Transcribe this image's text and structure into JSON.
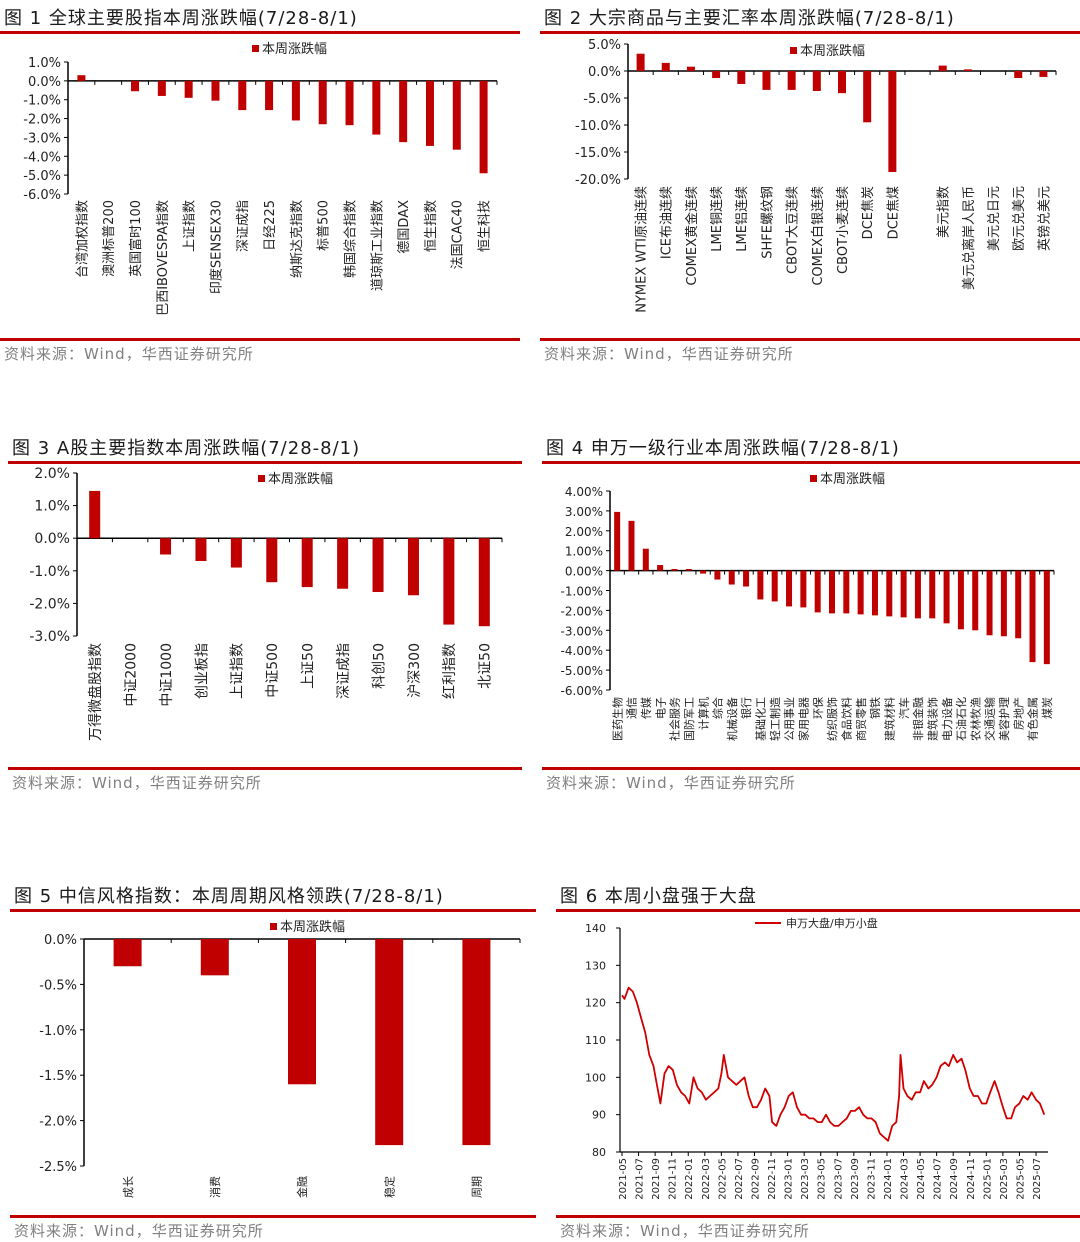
{
  "colors": {
    "bar": "#c00000",
    "rule": "#c00000",
    "line": "#d00000"
  },
  "charts": [
    {
      "title": "图 1  全球主要股指本周涨跌幅(7/28-8/1)",
      "source": "资料来源：Wind，华西证券研究所",
      "chart_data": {
        "type": "bar",
        "legend": "本周涨跌幅",
        "legend_position": "top",
        "ylim": [
          -6.0,
          1.0
        ],
        "yticks": [
          1.0,
          0.0,
          -1.0,
          -2.0,
          -3.0,
          -4.0,
          -5.0,
          -6.0
        ],
        "ytick_labels": [
          "1.0%",
          "0.0%",
          "-1.0%",
          "-2.0%",
          "-3.0%",
          "-4.0%",
          "-5.0%",
          "-6.0%"
        ],
        "categories": [
          "台湾加权指数",
          "澳洲标普200",
          "英国富时100",
          "巴西IBOVESPA指数",
          "上证指数",
          "印度SENSEX30",
          "深证成指",
          "日经225",
          "纳斯达克指数",
          "标普500",
          "韩国综合指数",
          "道琼斯工业指数",
          "德国DAX",
          "恒生指数",
          "法国CAC40",
          "恒生科技"
        ],
        "values": [
          0.3,
          0.0,
          -0.55,
          -0.8,
          -0.9,
          -1.05,
          -1.55,
          -1.55,
          -2.1,
          -2.3,
          -2.35,
          -2.85,
          -3.25,
          -3.45,
          -3.65,
          -4.9
        ]
      }
    },
    {
      "title": "图 2  大宗商品与主要汇率本周涨跌幅(7/28-8/1)",
      "source": "资料来源：Wind，华西证券研究所",
      "chart_data": {
        "type": "bar",
        "legend": "本周涨跌幅",
        "legend_position": "top",
        "ylim": [
          -20.0,
          5.0
        ],
        "yticks": [
          5.0,
          0.0,
          -5.0,
          -10.0,
          -15.0,
          -20.0
        ],
        "ytick_labels": [
          "5.0%",
          "0.0%",
          "-5.0%",
          "-10.0%",
          "-15.0%",
          "-20.0%"
        ],
        "categories": [
          "NYMEX WTI原油连续",
          "ICE布油连续",
          "COMEX黄金连续",
          "LME铜连续",
          "LME铝连续",
          "SHFE螺纹钢",
          "CBOT大豆连续",
          "COMEX白银连续",
          "CBOT小麦连续",
          "DCE焦炭",
          "DCE焦煤",
          "",
          "美元指数",
          "美元兑离岸人民币",
          "美元兑日元",
          "欧元兑美元",
          "英镑兑美元"
        ],
        "values": [
          3.2,
          1.5,
          0.8,
          -1.3,
          -2.4,
          -3.5,
          -3.5,
          -3.7,
          -4.1,
          -9.5,
          -18.7,
          null,
          1.0,
          0.3,
          0.0,
          -1.3,
          -1.1
        ]
      }
    },
    {
      "title": "图 3 A股主要指数本周涨跌幅(7/28-8/1)",
      "source": "资料来源：Wind，华西证券研究所",
      "chart_data": {
        "type": "bar",
        "legend": "本周涨跌幅",
        "legend_position": "top",
        "ylim": [
          -3.0,
          2.0
        ],
        "yticks": [
          2.0,
          1.0,
          0.0,
          -1.0,
          -2.0,
          -3.0
        ],
        "ytick_labels": [
          "2.0%",
          "1.0%",
          "0.0%",
          "-1.0%",
          "-2.0%",
          "-3.0%"
        ],
        "categories": [
          "万得微盘股指数",
          "中证2000",
          "中证1000",
          "创业板指",
          "上证指数",
          "中证500",
          "上证50",
          "深证成指",
          "科创50",
          "沪深300",
          "红利指数",
          "北证50"
        ],
        "values": [
          1.45,
          0.0,
          -0.5,
          -0.7,
          -0.9,
          -1.35,
          -1.5,
          -1.55,
          -1.65,
          -1.75,
          -2.65,
          -2.7
        ]
      }
    },
    {
      "title": "图 4  申万一级行业本周涨跌幅(7/28-8/1)",
      "source": "资料来源：Wind，华西证券研究所",
      "chart_data": {
        "type": "bar",
        "legend": "本周涨跌幅",
        "legend_position": "top",
        "ylim": [
          -6.0,
          4.0
        ],
        "yticks": [
          4,
          3,
          2,
          1,
          0,
          -1,
          -2,
          -3,
          -4,
          -5,
          -6
        ],
        "ytick_labels": [
          "4.00%",
          "3.00%",
          "2.00%",
          "1.00%",
          "0.00%",
          "-1.00%",
          "-2.00%",
          "-3.00%",
          "-4.00%",
          "-5.00%",
          "-6.00%"
        ],
        "categories": [
          "医药生物",
          "通信",
          "传媒",
          "电子",
          "社会服务",
          "国防军工",
          "计算机",
          "综合",
          "机械设备",
          "银行",
          "基础化工",
          "轻工制造",
          "公用事业",
          "家用电器",
          "环保",
          "纺织服饰",
          "食品饮料",
          "商贸零售",
          "钢铁",
          "建筑材料",
          "汽车",
          "非银金融",
          "建筑装饰",
          "电力设备",
          "石油石化",
          "农林牧渔",
          "交通运输",
          "美容护理",
          "房地产",
          "有色金属",
          "煤炭"
        ],
        "values": [
          2.95,
          2.5,
          1.1,
          0.28,
          0.08,
          0.08,
          -0.15,
          -0.45,
          -0.7,
          -0.8,
          -1.45,
          -1.55,
          -1.8,
          -1.85,
          -2.1,
          -2.15,
          -2.15,
          -2.2,
          -2.25,
          -2.3,
          -2.35,
          -2.4,
          -2.4,
          -2.65,
          -2.95,
          -3.0,
          -3.25,
          -3.3,
          -3.4,
          -4.6,
          -4.7
        ]
      }
    },
    {
      "title": "图 5  中信风格指数：本周周期风格领跌(7/28-8/1)",
      "source": "资料来源：Wind，华西证券研究所",
      "chart_data": {
        "type": "bar",
        "legend": "本周涨跌幅",
        "legend_position": "top",
        "ylim": [
          -2.5,
          0.0
        ],
        "yticks": [
          0.0,
          -0.5,
          -1.0,
          -1.5,
          -2.0,
          -2.5
        ],
        "ytick_labels": [
          "0.0%",
          "-0.5%",
          "-1.0%",
          "-1.5%",
          "-2.0%",
          "-2.5%"
        ],
        "categories": [
          "成长",
          "消费",
          "金融",
          "稳定",
          "周期"
        ],
        "values": [
          -0.3,
          -0.4,
          -1.6,
          -2.27,
          -2.27
        ]
      }
    },
    {
      "title": "图 6  本周小盘强于大盘",
      "source": "资料来源：Wind，华西证券研究所",
      "chart_data": {
        "type": "line",
        "legend_position": "top",
        "ylim": [
          80,
          140
        ],
        "yticks": [
          80,
          90,
          100,
          110,
          120,
          130,
          140
        ],
        "ytick_labels": [
          "80",
          "90",
          "100",
          "110",
          "120",
          "130",
          "140"
        ],
        "xtick_labels": [
          "2021-05",
          "2021-07",
          "2021-09",
          "2021-11",
          "2022-01",
          "2022-03",
          "2022-05",
          "2022-07",
          "2022-09",
          "2022-11",
          "2023-01",
          "2023-03",
          "2023-05",
          "2023-07",
          "2023-09",
          "2023-11",
          "2024-01",
          "2024-03",
          "2024-05",
          "2024-07",
          "2024-09",
          "2024-11",
          "2025-01",
          "2025-03",
          "2025-05",
          "2025-07"
        ],
        "series": [
          {
            "name": "申万大盘/申万小盘",
            "x": [
              "2021-05-01",
              "2021-05-10",
              "2021-05-25",
              "2021-06-10",
              "2021-06-25",
              "2021-07-10",
              "2021-07-25",
              "2021-08-10",
              "2021-08-25",
              "2021-09-10",
              "2021-09-20",
              "2021-10-05",
              "2021-10-20",
              "2021-11-05",
              "2021-11-20",
              "2021-12-05",
              "2021-12-20",
              "2022-01-05",
              "2022-01-20",
              "2022-02-05",
              "2022-02-20",
              "2022-03-05",
              "2022-03-20",
              "2022-04-05",
              "2022-04-20",
              "2022-05-01",
              "2022-05-10",
              "2022-05-25",
              "2022-06-10",
              "2022-06-25",
              "2022-07-10",
              "2022-07-25",
              "2022-08-10",
              "2022-08-25",
              "2022-09-10",
              "2022-09-25",
              "2022-10-10",
              "2022-10-25",
              "2022-11-05",
              "2022-11-20",
              "2022-12-05",
              "2022-12-20",
              "2023-01-05",
              "2023-01-20",
              "2023-02-05",
              "2023-02-20",
              "2023-03-05",
              "2023-03-20",
              "2023-04-05",
              "2023-04-20",
              "2023-05-05",
              "2023-05-20",
              "2023-06-05",
              "2023-06-20",
              "2023-07-05",
              "2023-07-20",
              "2023-08-05",
              "2023-08-20",
              "2023-09-05",
              "2023-09-20",
              "2023-10-05",
              "2023-10-20",
              "2023-11-05",
              "2023-11-20",
              "2023-12-05",
              "2023-12-20",
              "2024-01-05",
              "2024-01-20",
              "2024-02-05",
              "2024-02-15",
              "2024-02-20",
              "2024-03-01",
              "2024-03-15",
              "2024-04-01",
              "2024-04-15",
              "2024-05-01",
              "2024-05-15",
              "2024-06-01",
              "2024-06-15",
              "2024-07-01",
              "2024-07-15",
              "2024-08-01",
              "2024-08-15",
              "2024-09-01",
              "2024-09-15",
              "2024-10-01",
              "2024-10-15",
              "2024-11-01",
              "2024-11-15",
              "2024-12-01",
              "2024-12-15",
              "2025-01-01",
              "2025-01-15",
              "2025-02-01",
              "2025-02-15",
              "2025-03-01",
              "2025-03-15",
              "2025-04-01",
              "2025-04-15",
              "2025-05-01",
              "2025-05-15",
              "2025-06-01",
              "2025-06-15",
              "2025-07-01",
              "2025-07-15",
              "2025-08-01"
            ],
            "y": [
              122,
              121,
              124,
              123,
              120,
              116,
              112,
              106,
              103,
              97,
              93,
              101,
              103,
              102,
              98,
              96,
              95,
              93,
              100,
              97,
              96,
              94,
              95,
              96,
              97,
              101,
              106,
              100,
              99,
              98,
              99,
              100,
              95,
              92,
              92,
              94,
              97,
              95,
              88,
              87,
              90,
              92,
              95,
              96,
              92,
              90,
              90,
              89,
              89,
              88,
              88,
              90,
              88,
              87,
              87,
              88,
              89,
              91,
              91,
              92,
              90,
              89,
              89,
              88,
              85,
              84,
              83,
              87,
              88,
              95,
              106,
              97,
              95,
              94,
              96,
              96,
              99,
              97,
              98,
              100,
              103,
              104,
              103,
              106,
              104,
              105,
              102,
              97,
              95,
              95,
              93,
              93,
              96,
              99,
              96,
              92,
              89,
              89,
              92,
              93,
              95,
              94,
              96,
              94,
              93,
              90
            ]
          }
        ]
      }
    }
  ]
}
